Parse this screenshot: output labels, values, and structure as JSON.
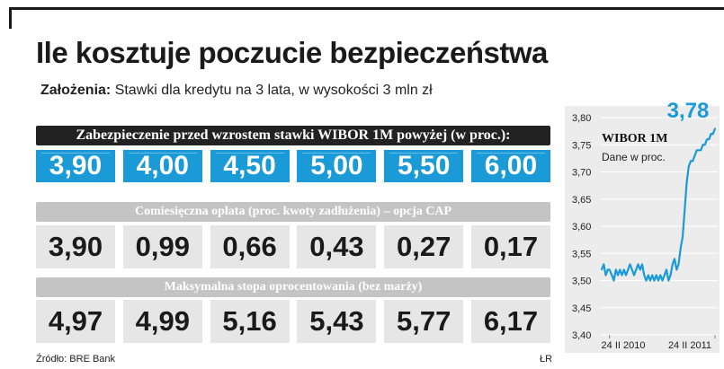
{
  "title": "Ile kosztuje poczucie bezpieczeństwa",
  "subtitle": {
    "label": "Założenia:",
    "text": "Stawki dla kredytu na 3 lata, w wysokości 3 mln zł"
  },
  "section1": {
    "header": "Zabezpieczenie przed wzrostem stawki WIBOR 1M powyżej (w proc.):",
    "values": [
      "3,90",
      "4,00",
      "4,50",
      "5,00",
      "5,50",
      "6,00"
    ]
  },
  "section2": {
    "header": "Comiesięczna opłata (proc. kwoty zadłużenia) – opcja CAP",
    "values": [
      "3,90",
      "0,99",
      "0,66",
      "0,43",
      "0,27",
      "0,17"
    ]
  },
  "section3": {
    "header": "Maksymalna stopa oprocentowania (bez marży)",
    "values": [
      "4,97",
      "4,99",
      "5,16",
      "5,43",
      "5,77",
      "6,17"
    ]
  },
  "footer": {
    "source": "Źródło: BRE Bank",
    "author": "ŁR"
  },
  "colors": {
    "accent": "#1a9ad6",
    "dark": "#222222",
    "gray_header": "#c4c4c4",
    "cell_gray": "#e6e6e6"
  },
  "chart_data": {
    "type": "line",
    "title": "WIBOR 1M",
    "subtitle": "Dane w proc.",
    "last_value_label": "3,78",
    "ylim": [
      3.4,
      3.8
    ],
    "y_ticks": [
      "3,80",
      "3,75",
      "3,70",
      "3,65",
      "3,60",
      "3,55",
      "3,50",
      "3,45",
      "3,40"
    ],
    "x_tick_labels": [
      "24 II 2010",
      "24 II 2011"
    ],
    "x": [
      "2010-01-28",
      "2010-02-04",
      "2010-02-11",
      "2010-02-18",
      "2010-02-24",
      "2010-03-04",
      "2010-03-11",
      "2010-03-18",
      "2010-03-25",
      "2010-04-01",
      "2010-04-08",
      "2010-04-15",
      "2010-04-22",
      "2010-04-29",
      "2010-05-06",
      "2010-05-13",
      "2010-05-20",
      "2010-05-27",
      "2010-06-03",
      "2010-06-10",
      "2010-06-17",
      "2010-06-24",
      "2010-07-01",
      "2010-07-08",
      "2010-07-15",
      "2010-07-22",
      "2010-07-29",
      "2010-08-05",
      "2010-08-12",
      "2010-08-19",
      "2010-08-26",
      "2010-09-02",
      "2010-09-09",
      "2010-09-16",
      "2010-09-23",
      "2010-09-30",
      "2010-10-07",
      "2010-10-14",
      "2010-10-21",
      "2010-10-28",
      "2010-11-04",
      "2010-11-11",
      "2010-11-18",
      "2010-11-25",
      "2010-12-02",
      "2010-12-09",
      "2010-12-16",
      "2010-12-23",
      "2010-12-30",
      "2011-01-06",
      "2011-01-13",
      "2011-01-20",
      "2011-01-27",
      "2011-02-03",
      "2011-02-10",
      "2011-02-17",
      "2011-02-24"
    ],
    "values": [
      3.52,
      3.53,
      3.51,
      3.52,
      3.52,
      3.51,
      3.5,
      3.52,
      3.51,
      3.52,
      3.51,
      3.52,
      3.51,
      3.52,
      3.53,
      3.52,
      3.51,
      3.52,
      3.53,
      3.52,
      3.53,
      3.51,
      3.5,
      3.51,
      3.5,
      3.51,
      3.5,
      3.51,
      3.5,
      3.51,
      3.5,
      3.51,
      3.52,
      3.5,
      3.51,
      3.53,
      3.54,
      3.52,
      3.53,
      3.56,
      3.58,
      3.63,
      3.68,
      3.71,
      3.72,
      3.72,
      3.73,
      3.74,
      3.74,
      3.74,
      3.75,
      3.75,
      3.76,
      3.76,
      3.77,
      3.77,
      3.78
    ],
    "grid": true,
    "colors": {
      "line": "#1a9ad6",
      "value_label": "#1a9ad6"
    }
  }
}
